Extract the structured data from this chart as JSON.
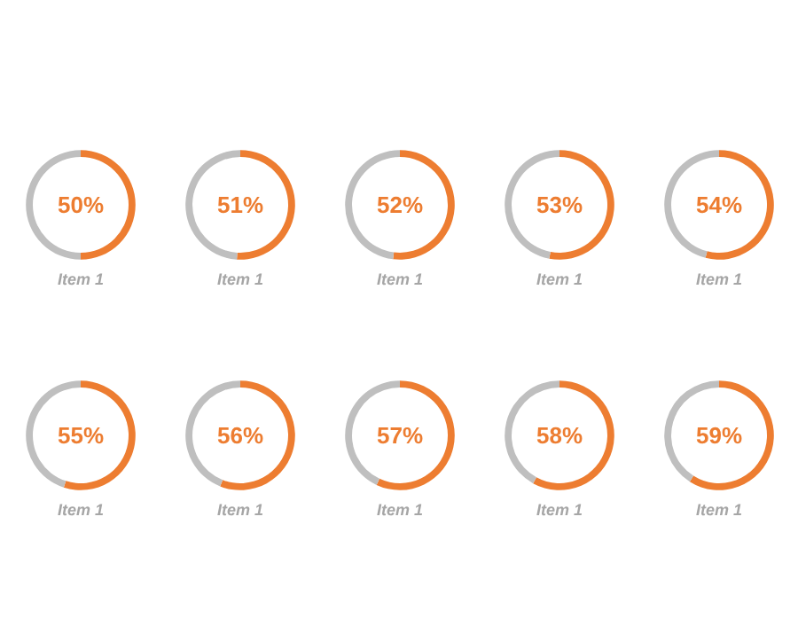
{
  "chart_data": [
    {
      "type": "donut",
      "xlabel": "Item 1",
      "categories": [
        null,
        null
      ],
      "values": [
        50,
        50
      ],
      "colors": [
        "#ed7d31",
        "#bfbfbf"
      ],
      "value_labels": [
        "50%",
        null
      ]
    },
    {
      "type": "donut",
      "xlabel": "Item 1",
      "categories": [
        null,
        null
      ],
      "values": [
        51,
        49
      ],
      "colors": [
        "#ed7d31",
        "#bfbfbf"
      ],
      "value_labels": [
        "51%",
        null
      ]
    },
    {
      "type": "donut",
      "xlabel": "Item 1",
      "categories": [
        null,
        null
      ],
      "values": [
        52,
        48
      ],
      "colors": [
        "#ed7d31",
        "#bfbfbf"
      ],
      "value_labels": [
        "52%",
        null
      ]
    },
    {
      "type": "donut",
      "xlabel": "Item 1",
      "categories": [
        null,
        null
      ],
      "values": [
        53,
        47
      ],
      "colors": [
        "#ed7d31",
        "#bfbfbf"
      ],
      "value_labels": [
        "53%",
        null
      ]
    },
    {
      "type": "donut",
      "xlabel": "Item 1",
      "categories": [
        null,
        null
      ],
      "values": [
        54,
        46
      ],
      "colors": [
        "#ed7d31",
        "#bfbfbf"
      ],
      "value_labels": [
        "54%",
        null
      ]
    },
    {
      "type": "donut",
      "xlabel": "Item 1",
      "categories": [
        null,
        null
      ],
      "values": [
        55,
        45
      ],
      "colors": [
        "#ed7d31",
        "#bfbfbf"
      ],
      "value_labels": [
        "55%",
        null
      ]
    },
    {
      "type": "donut",
      "xlabel": "Item 1",
      "categories": [
        null,
        null
      ],
      "values": [
        56,
        44
      ],
      "colors": [
        "#ed7d31",
        "#bfbfbf"
      ],
      "value_labels": [
        "56%",
        null
      ]
    },
    {
      "type": "donut",
      "xlabel": "Item 1",
      "categories": [
        null,
        null
      ],
      "values": [
        57,
        43
      ],
      "colors": [
        "#ed7d31",
        "#bfbfbf"
      ],
      "value_labels": [
        "57%",
        null
      ]
    },
    {
      "type": "donut",
      "xlabel": "Item 1",
      "categories": [
        null,
        null
      ],
      "values": [
        58,
        42
      ],
      "colors": [
        "#ed7d31",
        "#bfbfbf"
      ],
      "value_labels": [
        "58%",
        null
      ]
    },
    {
      "type": "donut",
      "xlabel": "Item 1",
      "categories": [
        null,
        null
      ],
      "values": [
        59,
        41
      ],
      "colors": [
        "#ed7d31",
        "#bfbfbf"
      ],
      "value_labels": [
        "59%",
        null
      ]
    }
  ]
}
